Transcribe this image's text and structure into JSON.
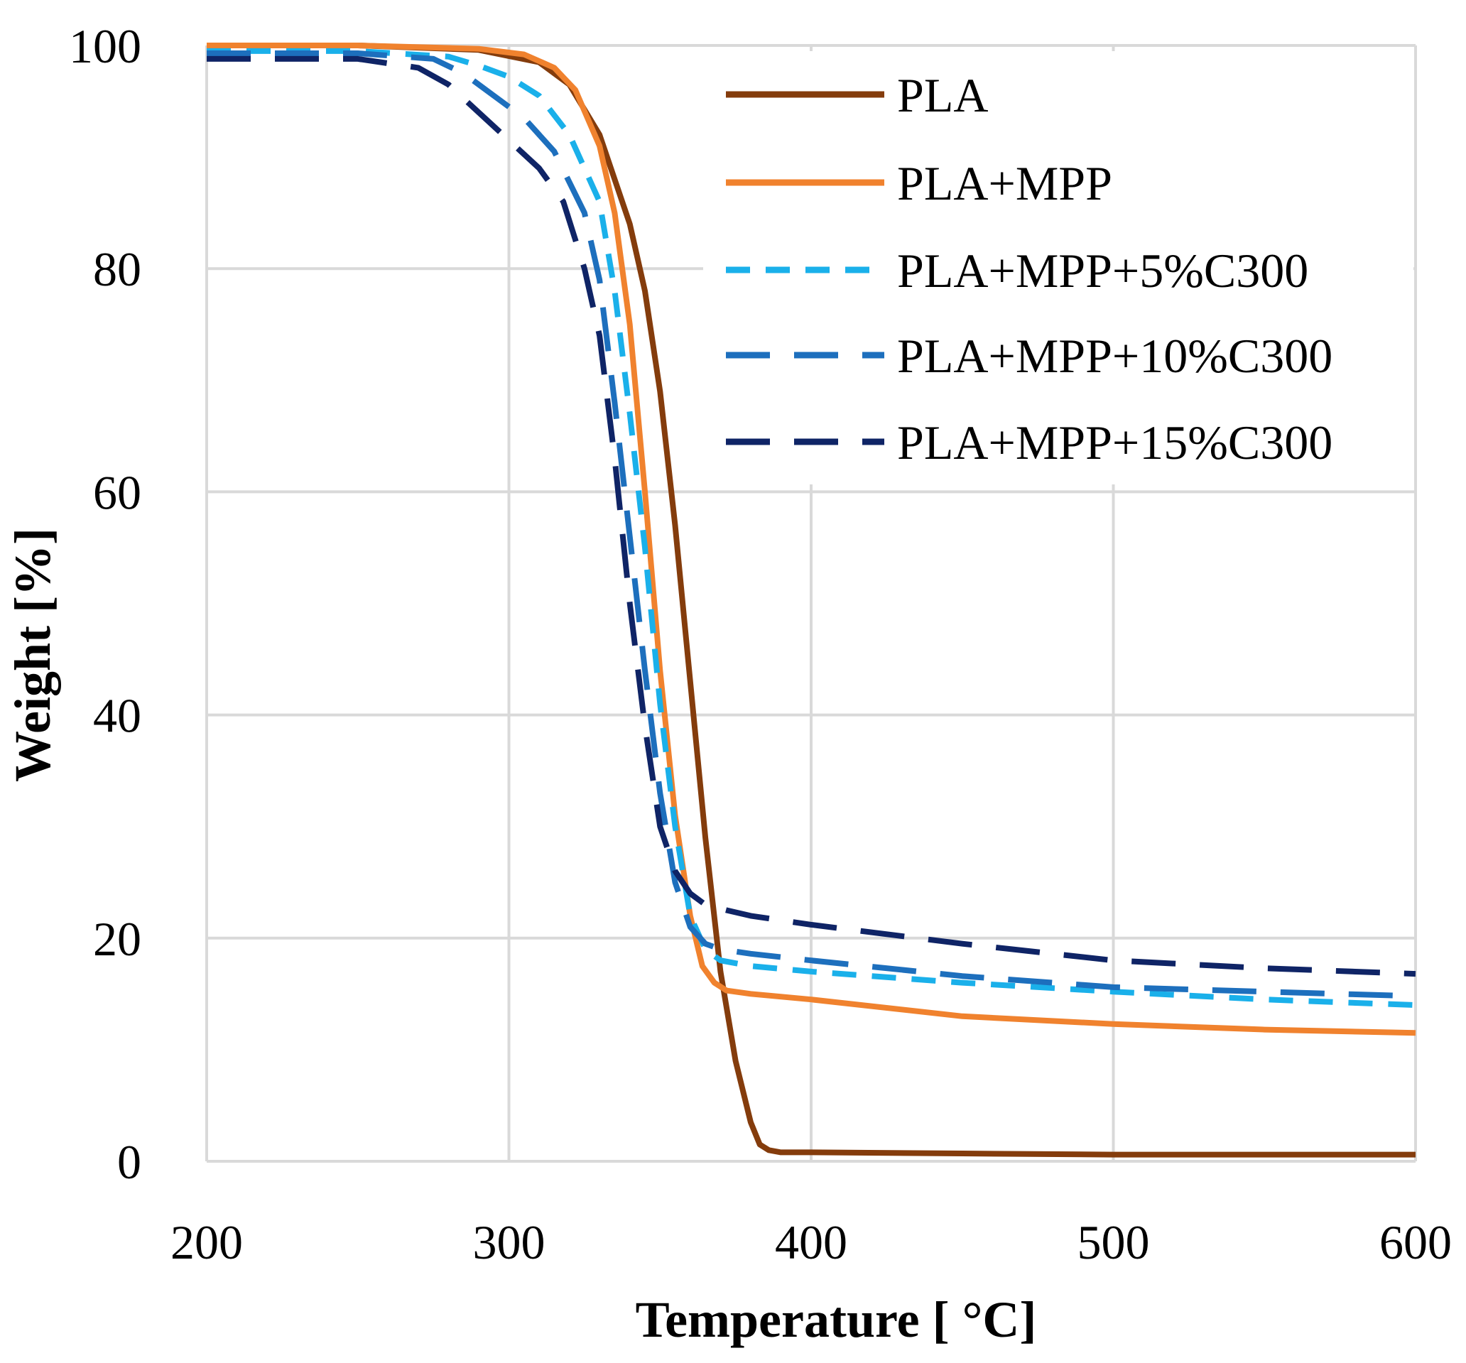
{
  "chart_data": {
    "type": "line",
    "title": "",
    "xlabel": "Temperature [ °C]",
    "ylabel": "Weight [%]",
    "xlim": [
      200,
      600
    ],
    "ylim": [
      0,
      100
    ],
    "xticks": [
      200,
      300,
      400,
      500,
      600
    ],
    "yticks": [
      0,
      20,
      40,
      60,
      80,
      100
    ],
    "xtick_labels": [
      "200",
      "300",
      "400",
      "500",
      "600"
    ],
    "ytick_labels": [
      "0",
      "20",
      "40",
      "60",
      "80",
      "100"
    ],
    "grid": true,
    "legend_position": "top-right",
    "series": [
      {
        "name": "PLA",
        "color": "#843c0c",
        "dash": "solid",
        "x": [
          200,
          250,
          290,
          310,
          320,
          330,
          340,
          345,
          350,
          355,
          360,
          365,
          370,
          375,
          380,
          383,
          386,
          390,
          400,
          450,
          500,
          550,
          600
        ],
        "y": [
          100,
          100,
          99.6,
          98.5,
          96.5,
          92,
          84,
          78,
          69,
          57,
          43,
          29,
          17,
          9,
          3.5,
          1.5,
          1.0,
          0.8,
          0.8,
          0.7,
          0.6,
          0.6,
          0.6
        ]
      },
      {
        "name": "PLA+MPP",
        "color": "#f0822e",
        "dash": "solid",
        "x": [
          200,
          250,
          290,
          305,
          315,
          322,
          330,
          335,
          340,
          345,
          350,
          355,
          360,
          364,
          368,
          372,
          380,
          400,
          450,
          500,
          550,
          600
        ],
        "y": [
          100,
          100,
          99.7,
          99.2,
          98,
          96,
          91,
          85,
          75,
          60,
          44,
          31,
          22,
          17.5,
          16,
          15.3,
          15,
          14.5,
          13,
          12.3,
          11.8,
          11.5
        ]
      },
      {
        "name": "PLA+MPP+5%C300",
        "color": "#1ab0ea",
        "dash": "short",
        "x": [
          200,
          250,
          280,
          290,
          300,
          310,
          320,
          330,
          335,
          340,
          345,
          350,
          355,
          360,
          365,
          370,
          380,
          400,
          450,
          500,
          550,
          600
        ],
        "y": [
          99.5,
          99.5,
          99,
          98.2,
          97.2,
          95.5,
          92,
          86,
          78,
          67,
          55,
          41,
          30,
          22,
          19,
          18,
          17.5,
          17,
          16,
          15.2,
          14.5,
          14
        ]
      },
      {
        "name": "PLA+MPP+10%C300",
        "color": "#1d6fbd",
        "dash": "long",
        "x": [
          200,
          250,
          275,
          285,
          295,
          305,
          315,
          325,
          330,
          335,
          340,
          345,
          350,
          355,
          360,
          365,
          370,
          380,
          400,
          450,
          500,
          550,
          600
        ],
        "y": [
          99.3,
          99.3,
          98.8,
          97.5,
          95.5,
          93.5,
          90.5,
          85,
          79,
          68,
          56,
          44,
          33,
          25,
          21,
          19.5,
          19,
          18.6,
          18,
          16.6,
          15.6,
          15.2,
          14.8
        ]
      },
      {
        "name": "PLA+MPP+15%C300",
        "color": "#0f2466",
        "dash": "long",
        "x": [
          200,
          250,
          270,
          280,
          290,
          300,
          310,
          318,
          325,
          330,
          335,
          340,
          345,
          350,
          355,
          360,
          365,
          372,
          380,
          400,
          450,
          500,
          550,
          600
        ],
        "y": [
          98.8,
          98.8,
          98,
          96.5,
          94,
          91.5,
          89,
          86,
          80,
          74,
          63,
          50,
          39,
          30,
          26,
          24,
          23,
          22.5,
          22,
          21.2,
          19.5,
          18,
          17.3,
          16.8
        ]
      }
    ]
  }
}
